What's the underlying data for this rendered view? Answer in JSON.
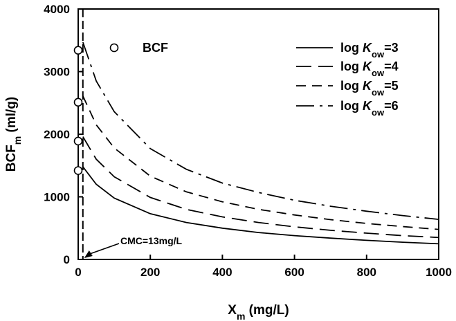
{
  "chart_data": {
    "type": "line",
    "xlabel": {
      "main": "X",
      "sub": "m",
      "unit": " (mg/L)"
    },
    "ylabel": {
      "main": "BCF",
      "sub": "m",
      "unit": " (ml/g)"
    },
    "xlim": [
      0,
      1000
    ],
    "ylim": [
      0,
      4000
    ],
    "x_ticks": [
      0,
      200,
      400,
      600,
      800,
      1000
    ],
    "y_ticks": [
      0,
      1000,
      2000,
      3000,
      4000
    ],
    "x_tick_labels": [
      "0",
      "200",
      "400",
      "600",
      "800",
      "1000"
    ],
    "y_tick_labels": [
      "0",
      "1000",
      "2000",
      "3000",
      "4000"
    ],
    "grid": false,
    "legend_position": "top-right",
    "cmc_line_x": 13,
    "annotation": {
      "text": "CMC=13mg/L",
      "points_to_x": 13,
      "points_to_y": 0
    },
    "bcf_points": {
      "legend_label": "BCF",
      "x": [
        0,
        0,
        0,
        0
      ],
      "y": [
        1420,
        1890,
        2510,
        3340
      ]
    },
    "series": [
      {
        "legend_prefix": "log ",
        "legend_k": "K",
        "legend_sub": "ow",
        "legend_suffix": "=3",
        "dash": "solid",
        "x": [
          13,
          50,
          100,
          200,
          300,
          400,
          500,
          600,
          700,
          800,
          900,
          1000
        ],
        "y": [
          1480,
          1200,
          980,
          730,
          590,
          500,
          430,
          380,
          340,
          305,
          275,
          250
        ]
      },
      {
        "legend_prefix": "log ",
        "legend_k": "K",
        "legend_sub": "ow",
        "legend_suffix": "=4",
        "dash": "long-dash",
        "x": [
          13,
          50,
          100,
          200,
          300,
          400,
          500,
          600,
          700,
          800,
          900,
          1000
        ],
        "y": [
          1960,
          1600,
          1320,
          990,
          800,
          680,
          590,
          520,
          465,
          420,
          380,
          350
        ]
      },
      {
        "legend_prefix": "log ",
        "legend_k": "K",
        "legend_sub": "ow",
        "legend_suffix": "=5",
        "dash": "medium-dash",
        "x": [
          13,
          50,
          100,
          200,
          300,
          400,
          500,
          600,
          700,
          800,
          900,
          1000
        ],
        "y": [
          2610,
          2150,
          1780,
          1330,
          1080,
          920,
          800,
          710,
          635,
          575,
          525,
          480
        ]
      },
      {
        "legend_prefix": "log ",
        "legend_k": "K",
        "legend_sub": "ow",
        "legend_suffix": "=6",
        "dash": "long-short-dash",
        "x": [
          13,
          50,
          100,
          200,
          300,
          400,
          500,
          600,
          700,
          800,
          900,
          1000
        ],
        "y": [
          3470,
          2850,
          2360,
          1770,
          1440,
          1220,
          1070,
          945,
          850,
          770,
          700,
          640
        ]
      }
    ]
  }
}
